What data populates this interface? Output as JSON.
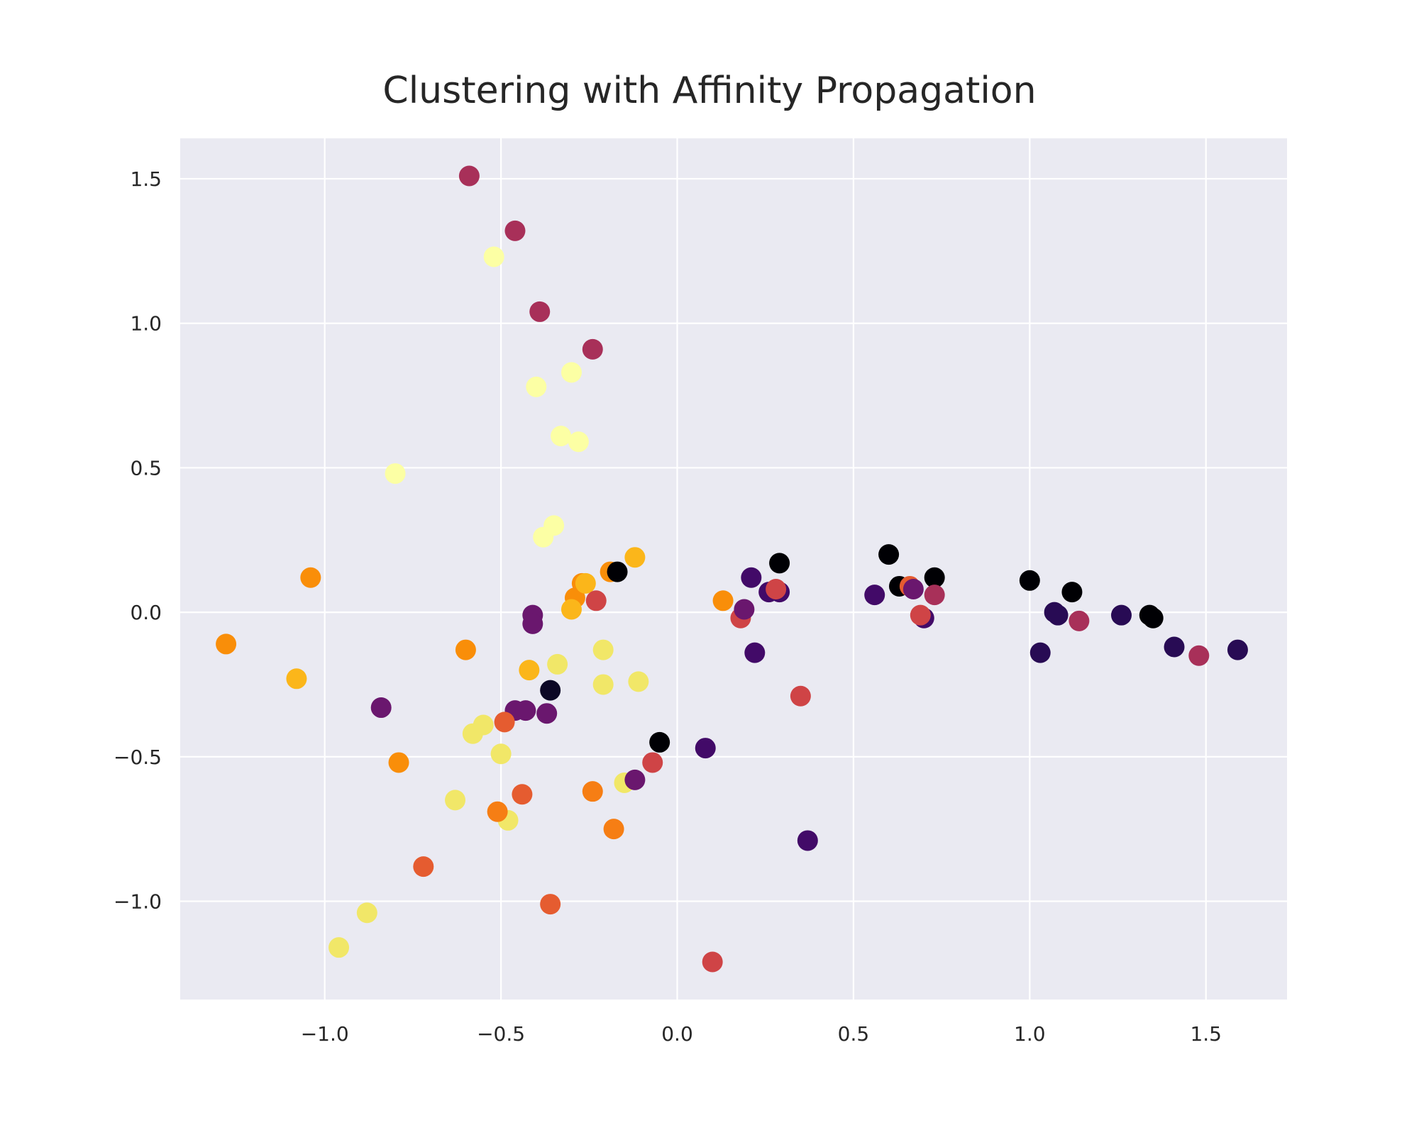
{
  "chart_data": {
    "type": "scatter",
    "title": "Clustering with Affinity Propagation",
    "xlabel": "",
    "ylabel": "",
    "xlim": [
      -1.41,
      1.73
    ],
    "ylim": [
      -1.34,
      1.64
    ],
    "xticks": [
      -1.0,
      -0.5,
      0.0,
      0.5,
      1.0,
      1.5
    ],
    "xtick_labels": [
      "−1.0",
      "−0.5",
      "0.0",
      "0.5",
      "1.0",
      "1.5"
    ],
    "yticks": [
      -1.0,
      -0.5,
      0.0,
      0.5,
      1.0,
      1.5
    ],
    "ytick_labels": [
      "−1.0",
      "−0.5",
      "0.0",
      "0.5",
      "1.0",
      "1.5"
    ],
    "grid": true,
    "background_color": "#eaeaf2",
    "grid_color": "#ffffff",
    "colormap": "inferno",
    "points": [
      {
        "x": -0.59,
        "y": 1.51,
        "color": "#a83059"
      },
      {
        "x": -0.46,
        "y": 1.32,
        "color": "#a83059"
      },
      {
        "x": -0.39,
        "y": 1.04,
        "color": "#a83059"
      },
      {
        "x": -0.24,
        "y": 0.91,
        "color": "#a83059"
      },
      {
        "x": -0.52,
        "y": 1.23,
        "color": "#fcffa4"
      },
      {
        "x": -0.3,
        "y": 0.83,
        "color": "#fcffa4"
      },
      {
        "x": -0.4,
        "y": 0.78,
        "color": "#fcffa4"
      },
      {
        "x": -0.33,
        "y": 0.61,
        "color": "#fcffa4"
      },
      {
        "x": -0.28,
        "y": 0.59,
        "color": "#fcffa4"
      },
      {
        "x": -0.8,
        "y": 0.48,
        "color": "#fcffa4"
      },
      {
        "x": -0.35,
        "y": 0.3,
        "color": "#fcffa4"
      },
      {
        "x": -0.38,
        "y": 0.26,
        "color": "#fcffa4"
      },
      {
        "x": -1.04,
        "y": 0.12,
        "color": "#f98e09"
      },
      {
        "x": -1.28,
        "y": -0.11,
        "color": "#f98e09"
      },
      {
        "x": -0.6,
        "y": -0.13,
        "color": "#f98e09"
      },
      {
        "x": -0.19,
        "y": 0.14,
        "color": "#f98e09"
      },
      {
        "x": -0.27,
        "y": 0.1,
        "color": "#f98e09"
      },
      {
        "x": -0.29,
        "y": 0.05,
        "color": "#f98e09"
      },
      {
        "x": 0.13,
        "y": 0.04,
        "color": "#f98e09"
      },
      {
        "x": -0.79,
        "y": -0.52,
        "color": "#f98e09"
      },
      {
        "x": -1.08,
        "y": -0.23,
        "color": "#fbb61a"
      },
      {
        "x": -0.12,
        "y": 0.19,
        "color": "#fbb61a"
      },
      {
        "x": -0.42,
        "y": -0.2,
        "color": "#fbb61a"
      },
      {
        "x": -0.3,
        "y": 0.01,
        "color": "#fbb61a"
      },
      {
        "x": -0.26,
        "y": 0.1,
        "color": "#fbb61a"
      },
      {
        "x": -0.17,
        "y": 0.14,
        "color": "#000004"
      },
      {
        "x": -0.41,
        "y": -0.01,
        "color": "#6a176e"
      },
      {
        "x": -0.41,
        "y": -0.04,
        "color": "#6a176e"
      },
      {
        "x": -0.23,
        "y": 0.04,
        "color": "#cf4446"
      },
      {
        "x": -0.34,
        "y": -0.18,
        "color": "#f1e768"
      },
      {
        "x": -0.21,
        "y": -0.13,
        "color": "#f1e768"
      },
      {
        "x": -0.21,
        "y": -0.25,
        "color": "#f1e768"
      },
      {
        "x": -0.11,
        "y": -0.24,
        "color": "#f1e768"
      },
      {
        "x": -0.36,
        "y": -0.27,
        "color": "#0c0826"
      },
      {
        "x": -0.84,
        "y": -0.33,
        "color": "#6a176e"
      },
      {
        "x": -0.46,
        "y": -0.34,
        "color": "#6a176e"
      },
      {
        "x": -0.43,
        "y": -0.34,
        "color": "#6a176e"
      },
      {
        "x": -0.37,
        "y": -0.35,
        "color": "#6a176e"
      },
      {
        "x": -0.58,
        "y": -0.42,
        "color": "#f1e768"
      },
      {
        "x": -0.55,
        "y": -0.39,
        "color": "#f1e768"
      },
      {
        "x": -0.5,
        "y": -0.49,
        "color": "#f1e768"
      },
      {
        "x": -0.49,
        "y": -0.38,
        "color": "#e55c30"
      },
      {
        "x": -0.63,
        "y": -0.65,
        "color": "#f1e768"
      },
      {
        "x": -0.48,
        "y": -0.72,
        "color": "#f1e768"
      },
      {
        "x": -0.15,
        "y": -0.59,
        "color": "#f1e768"
      },
      {
        "x": -0.12,
        "y": -0.58,
        "color": "#6a176e"
      },
      {
        "x": -0.51,
        "y": -0.69,
        "color": "#f67e14"
      },
      {
        "x": -0.44,
        "y": -0.63,
        "color": "#e55c30"
      },
      {
        "x": -0.24,
        "y": -0.62,
        "color": "#f67e14"
      },
      {
        "x": -0.18,
        "y": -0.75,
        "color": "#f67e14"
      },
      {
        "x": -0.72,
        "y": -0.88,
        "color": "#e55c30"
      },
      {
        "x": -0.36,
        "y": -1.01,
        "color": "#e55c30"
      },
      {
        "x": -0.88,
        "y": -1.04,
        "color": "#f1e768"
      },
      {
        "x": -0.96,
        "y": -1.16,
        "color": "#f1e768"
      },
      {
        "x": -0.05,
        "y": -0.45,
        "color": "#000004"
      },
      {
        "x": -0.07,
        "y": -0.52,
        "color": "#cf4446"
      },
      {
        "x": 0.08,
        "y": -0.47,
        "color": "#420a68"
      },
      {
        "x": 0.1,
        "y": -1.21,
        "color": "#cf4446"
      },
      {
        "x": 0.18,
        "y": -0.02,
        "color": "#cf4446"
      },
      {
        "x": 0.19,
        "y": 0.01,
        "color": "#6a176e"
      },
      {
        "x": 0.21,
        "y": 0.12,
        "color": "#420a68"
      },
      {
        "x": 0.22,
        "y": -0.14,
        "color": "#420a68"
      },
      {
        "x": 0.26,
        "y": 0.07,
        "color": "#420a68"
      },
      {
        "x": 0.29,
        "y": 0.07,
        "color": "#420a68"
      },
      {
        "x": 0.28,
        "y": 0.08,
        "color": "#cf4446"
      },
      {
        "x": 0.29,
        "y": 0.17,
        "color": "#000004"
      },
      {
        "x": 0.35,
        "y": -0.29,
        "color": "#cf4446"
      },
      {
        "x": 0.37,
        "y": -0.79,
        "color": "#420a68"
      },
      {
        "x": 0.56,
        "y": 0.06,
        "color": "#420a68"
      },
      {
        "x": 0.6,
        "y": 0.2,
        "color": "#000004"
      },
      {
        "x": 0.63,
        "y": 0.09,
        "color": "#000004"
      },
      {
        "x": 0.66,
        "y": 0.09,
        "color": "#e55c30"
      },
      {
        "x": 0.67,
        "y": 0.08,
        "color": "#6a176e"
      },
      {
        "x": 0.7,
        "y": -0.02,
        "color": "#420a68"
      },
      {
        "x": 0.69,
        "y": -0.01,
        "color": "#cf4446"
      },
      {
        "x": 0.73,
        "y": 0.12,
        "color": "#000004"
      },
      {
        "x": 0.73,
        "y": 0.06,
        "color": "#a83059"
      },
      {
        "x": 1.0,
        "y": 0.11,
        "color": "#000004"
      },
      {
        "x": 1.03,
        "y": -0.14,
        "color": "#280b54"
      },
      {
        "x": 1.07,
        "y": 0.0,
        "color": "#280b54"
      },
      {
        "x": 1.08,
        "y": -0.01,
        "color": "#280b54"
      },
      {
        "x": 1.12,
        "y": 0.07,
        "color": "#000004"
      },
      {
        "x": 1.14,
        "y": -0.03,
        "color": "#a83059"
      },
      {
        "x": 1.26,
        "y": -0.01,
        "color": "#280b54"
      },
      {
        "x": 1.34,
        "y": -0.01,
        "color": "#000004"
      },
      {
        "x": 1.35,
        "y": -0.02,
        "color": "#000004"
      },
      {
        "x": 1.41,
        "y": -0.12,
        "color": "#280b54"
      },
      {
        "x": 1.48,
        "y": -0.15,
        "color": "#a83059"
      },
      {
        "x": 1.59,
        "y": -0.13,
        "color": "#280b54"
      }
    ]
  }
}
